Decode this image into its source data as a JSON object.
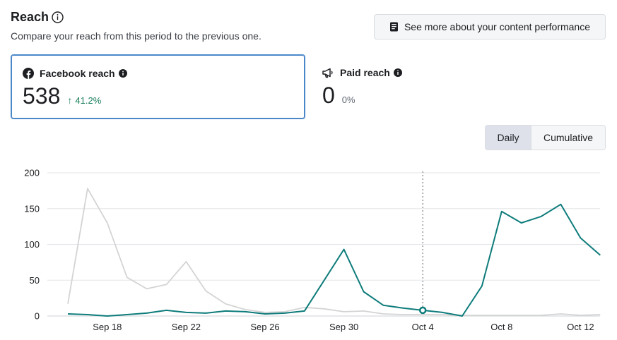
{
  "header": {
    "title": "Reach",
    "subtitle": "Compare your reach from this period to the previous one."
  },
  "actions": {
    "see_more_label": "See more about your content performance"
  },
  "cards": {
    "facebook": {
      "label": "Facebook reach",
      "value": "538",
      "delta": "41.2%"
    },
    "paid": {
      "label": "Paid reach",
      "value": "0",
      "delta": "0%"
    }
  },
  "toggle": {
    "daily": "Daily",
    "cumulative": "Cumulative",
    "selected": "Daily"
  },
  "colors": {
    "current": "#0e7c7b",
    "previous": "#d4d4d4",
    "accent_border": "#4a87c9",
    "delta_up": "#1a7f5a"
  },
  "chart_data": {
    "type": "line",
    "ylim": [
      0,
      200
    ],
    "yticks": [
      0,
      50,
      100,
      150,
      200
    ],
    "x": [
      "Sep 16",
      "Sep 17",
      "Sep 18",
      "Sep 19",
      "Sep 20",
      "Sep 21",
      "Sep 22",
      "Sep 23",
      "Sep 24",
      "Sep 25",
      "Sep 26",
      "Sep 27",
      "Sep 28",
      "Sep 29",
      "Sep 30",
      "Oct 1",
      "Oct 2",
      "Oct 3",
      "Oct 4",
      "Oct 5",
      "Oct 6",
      "Oct 7",
      "Oct 8",
      "Oct 9",
      "Oct 10",
      "Oct 11",
      "Oct 12",
      "Oct 13"
    ],
    "xtick_labels": [
      "Sep 18",
      "Sep 22",
      "Sep 26",
      "Sep 30",
      "Oct 4",
      "Oct 8",
      "Oct 12"
    ],
    "highlight_x": "Oct 4",
    "series": [
      {
        "values": [
          3,
          2,
          0,
          2,
          4,
          8,
          5,
          4,
          7,
          6,
          3,
          4,
          7,
          50,
          93,
          34,
          15,
          11,
          8,
          5,
          0,
          42,
          146,
          130,
          139,
          156,
          109,
          85
        ]
      },
      {
        "values": [
          17,
          178,
          130,
          54,
          38,
          44,
          76,
          35,
          17,
          9,
          5,
          6,
          12,
          10,
          6,
          7,
          3,
          2,
          2,
          2,
          1,
          1,
          1,
          1,
          1,
          3,
          1,
          2
        ]
      }
    ]
  }
}
